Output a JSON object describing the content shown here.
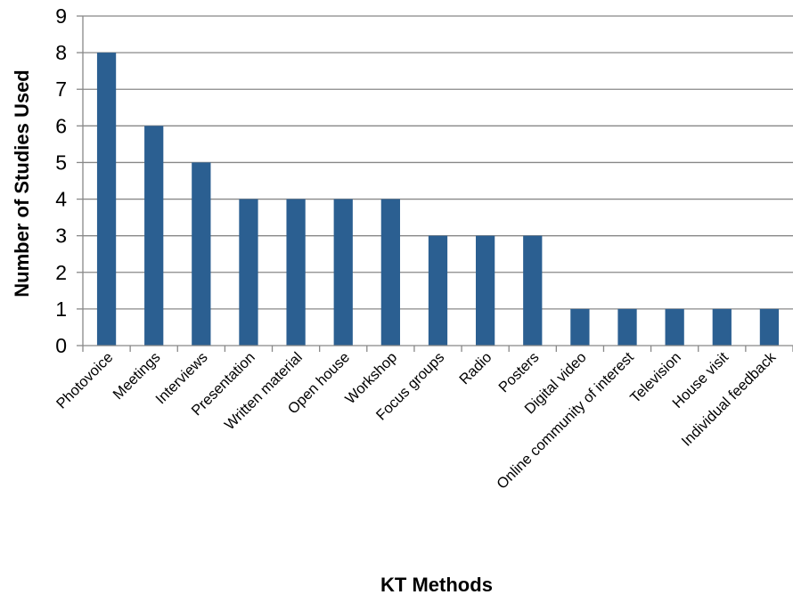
{
  "chart_data": {
    "type": "bar",
    "title": "",
    "xlabel": "KT Methods",
    "ylabel": "Number of Studies Used",
    "categories": [
      "Photovoice",
      "Meetings",
      "Interviews",
      "Presentation",
      "Written material",
      "Open house",
      "Workshop",
      "Focus groups",
      "Radio",
      "Posters",
      "Digital video",
      "Online community of interest",
      "Television",
      "House visit",
      "Individual feedback"
    ],
    "values": [
      8,
      6,
      5,
      4,
      4,
      4,
      4,
      3,
      3,
      3,
      1,
      1,
      1,
      1,
      1
    ],
    "ylim": [
      0,
      9
    ],
    "yticks": [
      "0",
      "1",
      "2",
      "3",
      "4",
      "5",
      "6",
      "7",
      "8",
      "9"
    ],
    "grid": true,
    "legend": "none",
    "colors": {
      "bar": "#2B5F91",
      "grid": "#888888",
      "axis": "#888888"
    }
  }
}
